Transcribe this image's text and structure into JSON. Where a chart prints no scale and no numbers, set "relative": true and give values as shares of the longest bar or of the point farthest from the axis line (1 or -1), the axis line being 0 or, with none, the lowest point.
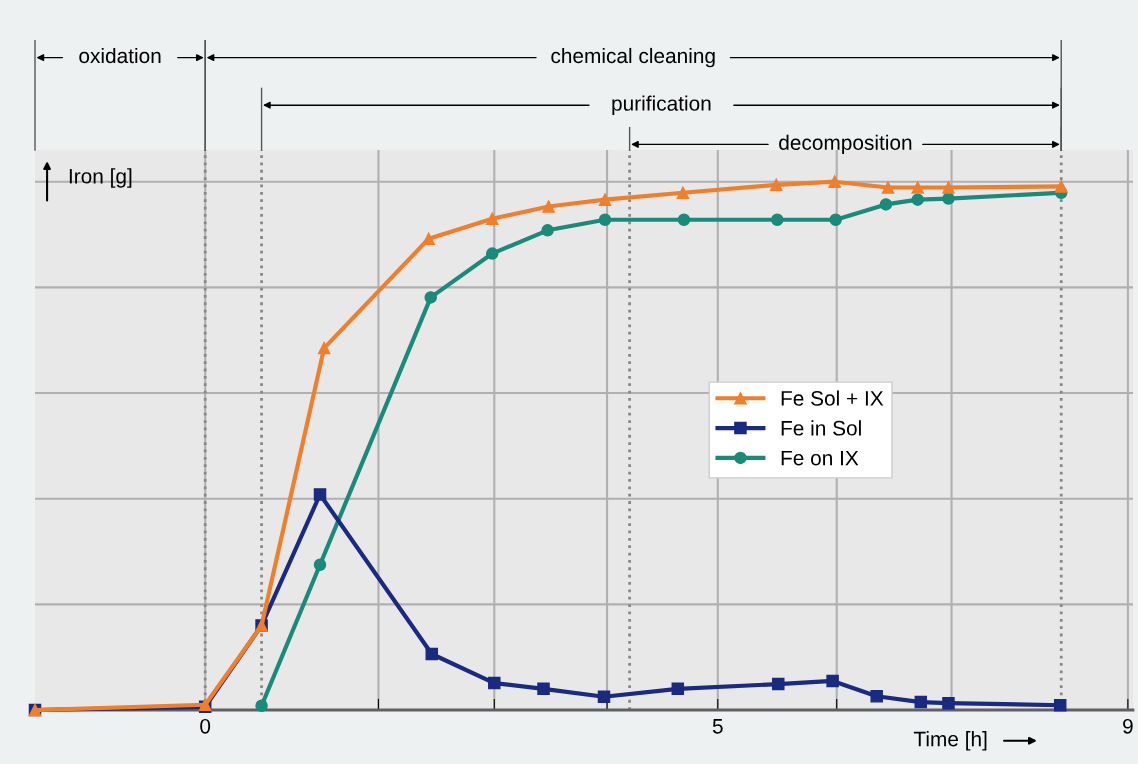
{
  "chart_data": {
    "type": "line",
    "relative": true,
    "xlabel": "Time [h]",
    "ylabel": "Iron [g]",
    "xlim": [
      -1.66,
      9.05
    ],
    "xticks": [
      0,
      {
        "value": 1.69,
        "label": null
      },
      {
        "value": 2.82,
        "label": null
      },
      {
        "value": 3.92,
        "label": null
      },
      5,
      {
        "value": 6.16,
        "label": null
      },
      {
        "value": 7.28,
        "label": null
      },
      9
    ],
    "grid": true,
    "legend": "right",
    "line_style": "solid",
    "series": [
      {
        "name": "Fe Sol + IX",
        "color": "#f07f2c",
        "marker": "triangle",
        "x": [
          -1.66,
          0,
          0.55,
          1.16,
          2.18,
          2.8,
          3.35,
          3.9,
          4.66,
          5.57,
          6.14,
          6.66,
          6.95,
          7.25,
          8.35
        ],
        "values": [
          0,
          0.01,
          0.16,
          0.685,
          0.892,
          0.93,
          0.953,
          0.966,
          0.979,
          0.994,
          1.0,
          0.989,
          0.989,
          0.989,
          0.991
        ]
      },
      {
        "name": "Fe in Sol",
        "color": "#1a2a80",
        "marker": "square",
        "x": [
          -1.66,
          0,
          0.55,
          1.12,
          2.21,
          2.82,
          3.3,
          3.89,
          4.61,
          5.59,
          6.12,
          6.55,
          6.98,
          7.25,
          8.34
        ],
        "values": [
          0,
          0.006,
          0.16,
          0.408,
          0.106,
          0.051,
          0.04,
          0.025,
          0.04,
          0.049,
          0.055,
          0.026,
          0.015,
          0.013,
          0.009
        ]
      },
      {
        "name": "Fe on IX",
        "color": "#1a8a7a",
        "marker": "circle",
        "x": [
          0.55,
          1.12,
          2.2,
          2.8,
          3.34,
          3.9,
          4.67,
          5.58,
          6.15,
          6.64,
          6.95,
          7.25,
          8.35
        ],
        "values": [
          0.008,
          0.275,
          0.781,
          0.864,
          0.908,
          0.928,
          0.928,
          0.928,
          0.928,
          0.957,
          0.966,
          0.968,
          0.979
        ]
      }
    ],
    "ref_lines": [
      {
        "axis": "x",
        "value": 0,
        "line_style": "dotted"
      },
      {
        "axis": "x",
        "value": 0.55,
        "line_style": "dotted"
      },
      {
        "axis": "x",
        "value": 4.14,
        "line_style": "dotted"
      },
      {
        "axis": "x",
        "value": 8.35,
        "line_style": "dotted"
      }
    ],
    "annotations": [
      "oxidation",
      "chemical cleaning",
      "purification",
      "decomposition"
    ]
  }
}
